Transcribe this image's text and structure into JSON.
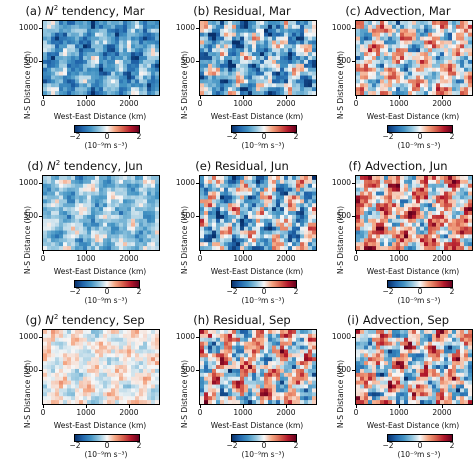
{
  "colorbar": {
    "ticks": [
      "−2",
      "0",
      "2"
    ],
    "label": "(10⁻⁹m s⁻³)",
    "colormap": [
      "#08306b",
      "#2166ac",
      "#4393c3",
      "#92c5de",
      "#f7f7f7",
      "#f4a582",
      "#d6604d",
      "#b2182b",
      "#67001f"
    ],
    "range": [
      -2,
      2
    ]
  },
  "axes": {
    "xlabel": "West-East Distance (km)",
    "ylabel": "N-S Distance (km)",
    "xticks": [
      "0",
      "1000",
      "2000"
    ],
    "yticks": [
      "500",
      "1000"
    ],
    "xlim": [
      0,
      2700
    ],
    "ylim": [
      0,
      1100
    ]
  },
  "panels": [
    {
      "title_prefix": "(a) ",
      "title_var": "N",
      "title_sup": "2",
      "title_rest": " tendency, Mar",
      "bias": -0.9,
      "spread": 0.6,
      "xtick_labels": [
        "0",
        "1000",
        "2000"
      ]
    },
    {
      "title_prefix": "(b) ",
      "title_var": "",
      "title_sup": "",
      "title_rest": "Residual, Mar",
      "bias": -0.7,
      "spread": 0.9,
      "xtick_labels": [
        "0",
        "1000",
        "2000"
      ]
    },
    {
      "title_prefix": "(c) ",
      "title_var": "",
      "title_sup": "",
      "title_rest": "Advection, Mar",
      "bias": 0.0,
      "spread": 0.9,
      "xtick_labels": [
        "0",
        "1000",
        "2000"
      ]
    },
    {
      "title_prefix": "(d) ",
      "title_var": "N",
      "title_sup": "2",
      "title_rest": " tendency, Jun",
      "bias": -0.55,
      "spread": 0.5,
      "xtick_labels": [
        "0",
        "1000",
        "2000"
      ]
    },
    {
      "title_prefix": "(e) ",
      "title_var": "",
      "title_sup": "",
      "title_rest": "Residual, Jun",
      "bias": -0.45,
      "spread": 1.0,
      "xtick_labels": [
        "0",
        "1000",
        "2000"
      ]
    },
    {
      "title_prefix": "(f) ",
      "title_var": "",
      "title_sup": "",
      "title_rest": "Advection, Jun",
      "bias": 0.35,
      "spread": 1.0,
      "xtick_labels": [
        "0",
        "1000",
        "2000"
      ]
    },
    {
      "title_prefix": "(g) ",
      "title_var": "N",
      "title_sup": "2",
      "title_rest": " tendency, Sep",
      "bias": 0.0,
      "spread": 0.35,
      "xtick_labels": [
        "0",
        "1000",
        "2000"
      ]
    },
    {
      "title_prefix": "(h) ",
      "title_var": "",
      "title_sup": "",
      "title_rest": "Residual, Sep",
      "bias": 0.0,
      "spread": 1.1,
      "xtick_labels": [
        "0",
        "1000",
        "2000"
      ]
    },
    {
      "title_prefix": "(i) ",
      "title_var": "",
      "title_sup": "",
      "title_rest": "Advection, Sep",
      "bias": 0.0,
      "spread": 1.1,
      "xtick_labels": [
        "0",
        "1000",
        "2000"
      ]
    }
  ],
  "chart_data": {
    "type": "heatmap",
    "layout": "3x3 grid",
    "titles": [
      "(a) N² tendency, Mar",
      "(b) Residual, Mar",
      "(c) Advection, Mar",
      "(d) N² tendency, Jun",
      "(e) Residual, Jun",
      "(f) Advection, Jun",
      "(g) N² tendency, Sep",
      "(h) Residual, Sep",
      "(i) Advection, Sep"
    ],
    "xlabel": "West-East Distance (km)",
    "ylabel": "N-S Distance (km)",
    "xlim": [
      0,
      2700
    ],
    "ylim": [
      0,
      1100
    ],
    "xticks": [
      0,
      1000,
      2000
    ],
    "yticks": [
      500,
      1000
    ],
    "color_range": [
      -2,
      2
    ],
    "colorbar_label": "(10⁻⁹m s⁻³)",
    "colorbar_ticks": [
      -2,
      0,
      2
    ]
  }
}
